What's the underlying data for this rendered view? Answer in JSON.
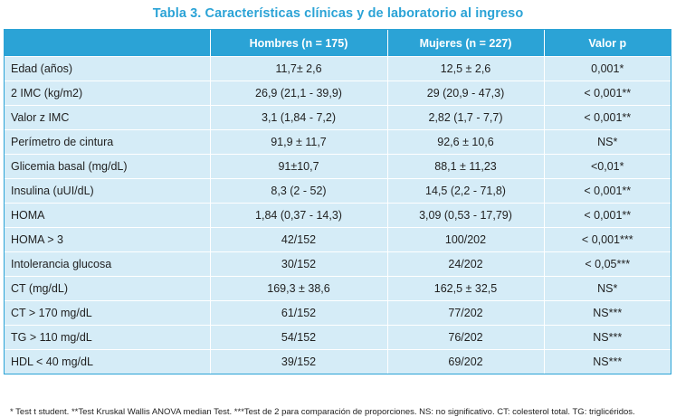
{
  "title": "Tabla 3. Características clínicas y de laboratorio al ingreso",
  "header": [
    "",
    "Hombres (n = 175)",
    "Mujeres (n = 227)",
    "Valor p"
  ],
  "rows": [
    [
      "Edad (años)",
      "11,7± 2,6",
      "12,5 ± 2,6",
      "0,001*"
    ],
    [
      "2 IMC (kg/m2)",
      "26,9 (21,1 - 39,9)",
      "29 (20,9 - 47,3)",
      "< 0,001**"
    ],
    [
      "Valor z IMC",
      "3,1 (1,84 - 7,2)",
      "2,82 (1,7 - 7,7)",
      "< 0,001**"
    ],
    [
      "Perímetro de cintura",
      "91,9 ± 11,7",
      "92,6 ± 10,6",
      "NS*"
    ],
    [
      "Glicemia basal (mg/dL)",
      "91±10,7",
      "88,1 ± 11,23",
      "<0,01*"
    ],
    [
      "Insulina (uUI/dL)",
      "8,3 (2 - 52)",
      "14,5 (2,2 - 71,8)",
      "< 0,001**"
    ],
    [
      "HOMA",
      "1,84 (0,37 - 14,3)",
      "3,09 (0,53 - 17,79)",
      "< 0,001**"
    ],
    [
      "HOMA > 3",
      "42/152",
      "100/202",
      "< 0,001***"
    ],
    [
      "Intolerancia glucosa",
      "30/152",
      "24/202",
      "< 0,05***"
    ],
    [
      "CT (mg/dL)",
      "169,3 ± 38,6",
      "162,5 ± 32,5",
      "NS*"
    ],
    [
      "CT > 170 mg/dL",
      "61/152",
      "77/202",
      "NS***"
    ],
    [
      "TG > 110 mg/dL",
      "54/152",
      "76/202",
      "NS***"
    ],
    [
      "HDL < 40 mg/dL",
      "39/152",
      "69/202",
      "NS***"
    ]
  ],
  "footnote": "* Test t student. **Test Kruskal Wallis ANOVA median Test. ***Test de 2 para comparación de proporciones. NS: no significativo. CT: colesterol total. TG: triglicéridos.",
  "colors": {
    "accent": "#2ba3d6",
    "row_background": "#d5ecf7",
    "header_text": "#ffffff"
  }
}
